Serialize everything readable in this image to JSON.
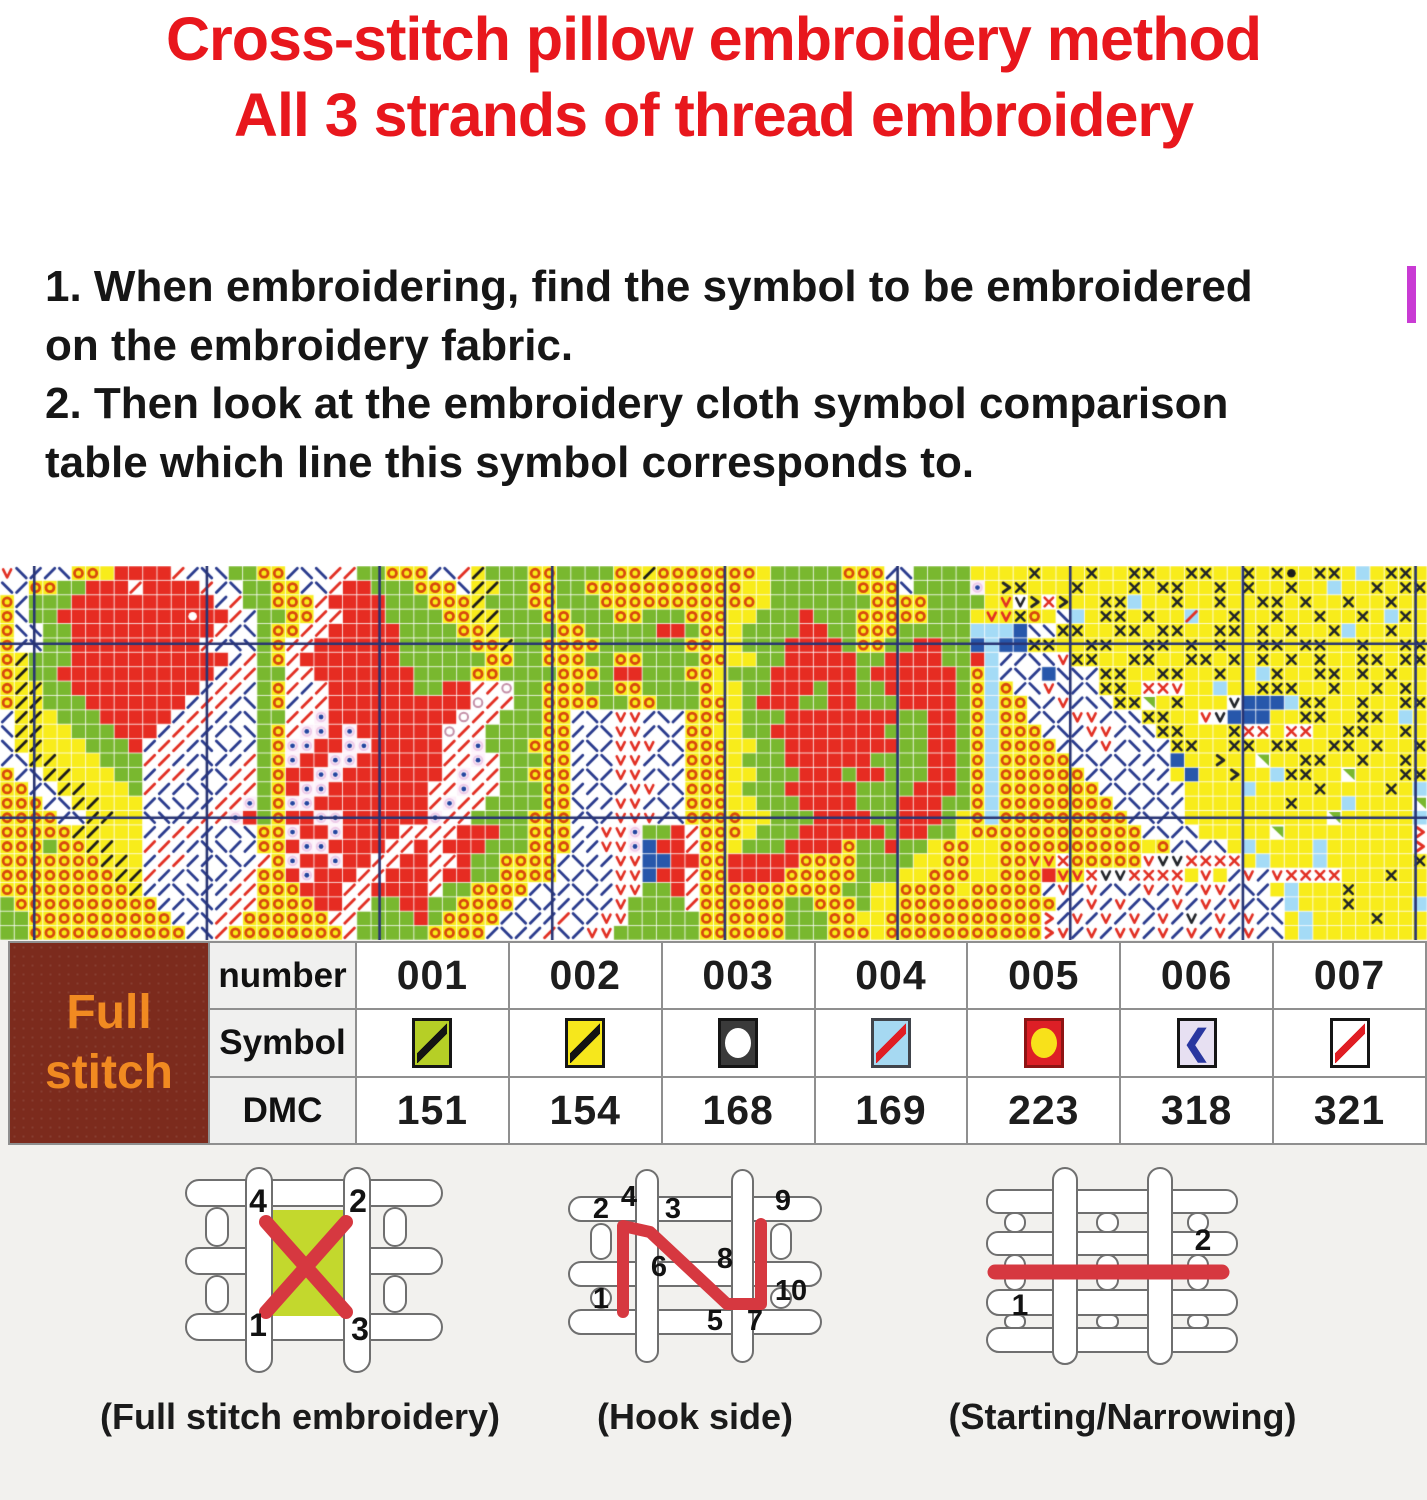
{
  "title": {
    "line1": "Cross-stitch pillow embroidery method",
    "line2": "All 3 strands of thread embroidery",
    "color": "#e8171d"
  },
  "instructions": {
    "lines": [
      "1. When embroidering, find the symbol to be embroidered",
      "on the embroidery fabric.",
      "2. Then look at the embroidery cloth symbol comparison",
      "table which line this symbol corresponds to."
    ]
  },
  "chart": {
    "cols": 100,
    "grid_line_color": "#ffffff",
    "heavy_line_color": "#283473",
    "heavy_vertical_cols": [
      2.4,
      14.5,
      26.6,
      38.7,
      50.8,
      62.9,
      75.0,
      87.1,
      99.2
    ],
    "heavy_horizontal_rows": [
      5.4,
      17.5
    ],
    "palette": {
      ".": {
        "bg": "#ffffff",
        "mark": "sf",
        "fg": "#2b3c8e"
      },
      "L": {
        "bg": "#ffffff",
        "mark": "sb",
        "fg": "#2b3c8e"
      },
      ",": {
        "bg": "#ffffff",
        "mark": "sf",
        "fg": "#e23024"
      },
      "/": {
        "bg": "#f8ec1b",
        "mark": "sf",
        "fg": "#1c1c1c"
      },
      "k": {
        "bg": "#f8ec1b",
        "mark": "sf",
        "fg": "#2b3c8e"
      },
      "o": {
        "bg": "#f8ec1b",
        "mark": "ring",
        "fg": "#d8480e"
      },
      "y": {
        "bg": "#f8ec1b",
        "mark": "none",
        "fg": ""
      },
      "g": {
        "bg": "#79b82f",
        "mark": "none",
        "fg": ""
      },
      "r": {
        "bg": "#e62c22",
        "mark": "none",
        "fg": ""
      },
      "x": {
        "bg": "#f8ec1b",
        "mark": "X",
        "fg": "#20242a"
      },
      "X": {
        "bg": "#ffffff",
        "mark": "X",
        "fg": "#e23024"
      },
      "c": {
        "bg": "#a4dbf6",
        "mark": "none",
        "fg": ""
      },
      "s": {
        "bg": "#a4dbf6",
        "mark": "sf",
        "fg": "#e23024"
      },
      "b": {
        "bg": "#2757ab",
        "mark": "none",
        "fg": ""
      },
      "d": {
        "bg": "#fdf1fa",
        "mark": "dot",
        "fg": "#2446a0"
      },
      "v": {
        "bg": "#ffffff",
        "mark": "V",
        "fg": "#e23024"
      },
      "u": {
        "bg": "#ffffff",
        "mark": "V",
        "fg": "#23262b"
      },
      "V": {
        "bg": "#f8ec1b",
        "mark": "V",
        "fg": "#e23024"
      },
      ">": {
        "bg": "#f8ec1b",
        "mark": "chev",
        "fg": "#23262b"
      },
      "}": {
        "bg": "#ffffff",
        "mark": "chev",
        "fg": "#e23024"
      },
      "N": {
        "bg": "#ffffff",
        "mark": "tri",
        "fg": "#79b82f"
      },
      "w": {
        "bg": "#ffffff",
        "mark": "none",
        "fg": ""
      },
      "Q": {
        "bg": "#e62c22",
        "mark": "disc",
        "fg": "#ffffff"
      },
      "q": {
        "bg": "#ffffff",
        "mark": "oring",
        "fg": "#c490a8"
      },
      "*": {
        "bg": "#f8ec1b",
        "mark": "disc",
        "fg": "#1c1c1c"
      }
    },
    "rows": [
      "vL..Looyrrrr,.LLggoo.LL,,ggooo.L,/gggooggggoo/oooooooygggggooo.Lggggyyyyxyyyxyyxxyyxxyyxyx*yxxycyxxy",
      "L.ooggrrr,rrrr,.Lggoo.L,rrgggoooL//ggooggoooooooooooyyggggggoooLggggdy>xyyyxyyyxyxxyyxyxyyxyycyyxyxx",
      "o.gggrrrrrrrrrr.,ggooo,rrrrgggooo/gggoogggoooooooooooygggggggooooggggyVu>X>yyxxcyyxyyxyyxxyxyyxyyxyyx",
      "oLggrrrrrrrrrQrr,.ggoo,,rrrggggoo//gggoogggoogggoooyygggrgggooooogggyVVxoyLcyxxyxyysyyxyyxyyxyyxycxy",
      "oLLggrrrrrrrrrr,.Lgoo,,rrrrrggggoo/ggggoogggggrrgooyggggrrggooogggggcccbLLxxyyxxyxxyyxxyxyxyyxcyyxyy",
      "o.Lggrrrrrrrrr,.LLgo,,rrrrrrgggggoo/ggooooggggggooyygggrrrrgooggrrggbcbbxxyyxxyyxxyxyxyyxxyxxyyxyyxx",
      "o/gggrrrrrrrrrrr.,go,rrrrrrrggggggooggoooggooggggooyyggrrrrrggrrrrggrc..LLvxxyyxxyyxxyxyxyxyxyyxxyxx",
      "o/ggrrrrrrrrrrr.,,gg,,rrrrrrrggggooggggooogrrgggooygggrrrrrrgrrrrrrgoc.L.bLL.xxyyxxyyxyycxyyxxyxyxyy",
      "o//ggrrrrrrrrr.,,.go,.,rrrrrrggrr,,qggoooggooggggoyyggrrrgrrggrrrrrgoco.LvL.LxxyXXvyycyyxxxyyxyyxyxy",
      "o//gggrrrrrrr.,,.Lgo.,,rrrrrrrrrrq,,ggooooggoogggooygrrrggrrgggrrrrgocooL.v.LLxxNyxyyyubbbcxxyyxyyxx",
      ".//ygggrrrrr.,,..Lgg,,drrrrrrrrrq,,gggoo.L.vv.L.oooygggrrrrrrrrggrrgocoo.L.vv.LLxxyyvubbbyyxxyyxxycy",
      "L//yygggrrr.,,..LLgo,ddrdrrrrrrq,,ggggoo..Lvv.L.ooyyggrrrrrrrrgggrrgocooo.L.vv.LLxxyyyxXXyXXyyxxyyxy",
      "L//yyygggr.,,.LL..goddrrddrrrrr,,dgggooo.L.vvv.Loooyyggrrrrrrrrggrrgocoooo.L.v.LL.xxyyxxyxxyyxxyxyyx",
      ".L//yyyggg,,..L..,godrrddrrrrrr,,d,gggoo..Lvv.L.oooygggrrrrrrggggrrgocooooo.L.L..Lbyy>yyNyyxxyyxyyxy",
      "o.L//yyygg.,,..L,,gorrddrrrrrrr,d,,ggooo.L.vv.L.oooyygggrrrgrrgggrrgocoooooo.L.L..ybyy>yycxxyyNyyyxx",
      "oo.L//yyyg,..LL.,,gorddrrrrrrr,,d,,gggoo..L.vv.Loooygggrrrrrggggrrrgocooooooo.L.L..yyyycyyyyxyyyyxyc",
      "ooo.L//yyy.LL..,,dgoddrrrrrrrr,d,,ggggooL..vv.L.oooyygggrrrrgggrrrggocoooooooo.L.L.yyyyyyyxyyycyyyyN",
      "oooo.L//yyLL..,,drgorrddrrrrrrd,,ggggooo.L.vvv.Looooyygggrrrrggrrrgyocooooooooo.L.Lyyyyyyyyy Nyyyyycy",
      "ooooo//yyy..,,..LLoodrrdrrrr,,,,rrrggooo..vvdggr,oooygggrrrrrrgrrggyoooooooooooo.L.LyyyyyNyyyyyyyyy}",
      "ooogoo//yy,,..LL..oorddrrrr,,r,rrrgggooo..vvdbrr,ooygggrrrroggrggyooyyoooooooooo o.L.Lycyyyycyyyyyy}y",
      "ooooooo//y.,,..LL.,odrrdrr,,rr,,rggoooo.L..vvbbrroorrrrrooooggggyyooyyooVVXooooovuuXXXXycyyycyyyyyyx",
      "oooooooo//,..LL..,oordrrr,,rrr,rrggooooL.L.vvbrr,oorrrrooooogggyyoooyyooorVVXuuXXXXyvy.v.vXXXXyyyxyy",
      "ooooooooo/..LL..,,ooorrr,,rrrr,ggoooo.L.L..vvggr,ooooooooooggyyooooyooooo.v.v.L.v.v.vv.L.ycyyyxyyyy",
      "goooooooooo..LL.,,oooorr,,ggrrggoooo.L...L.vgggg,ooooooggooogyyooooooooooo..v.v.L.v.v.v.L.cyyyxyyyyc",
      "ggoooooooooo..L,,oooooo,,ggggrgoooo.L..,L.vvgggggoooooogggooyyooooooooooo}.v.v.v.v.u.v.v.Lycyyyyxyyy",
      "ggooooooooooo.L,oooooooo,gggggoooo.L..,L.vvggggggoooooogggoooyooooooooooo}v.v.vv.v.v.v.v.Lycyyyyyyyyy"
    ]
  },
  "table": {
    "section_label_line1": "Full",
    "section_label_line2": "stitch",
    "row_labels": {
      "number": "number",
      "symbol": "Symbol",
      "dmc": "DMC"
    },
    "cols": [
      {
        "number": "001",
        "dmc": "151",
        "symbol": {
          "bg": "#b6cf26",
          "border": "#151515",
          "mark": "slash",
          "color": "#131313"
        }
      },
      {
        "number": "002",
        "dmc": "154",
        "symbol": {
          "bg": "#f6e71c",
          "border": "#151515",
          "mark": "slash",
          "color": "#131313"
        }
      },
      {
        "number": "003",
        "dmc": "168",
        "symbol": {
          "bg": "#3a3a3a",
          "border": "#151515",
          "mark": "circle",
          "color": "#ffffff"
        }
      },
      {
        "number": "004",
        "dmc": "169",
        "symbol": {
          "bg": "#a6d9f2",
          "border": "#40444b",
          "mark": "slash",
          "color": "#e01e24"
        }
      },
      {
        "number": "005",
        "dmc": "223",
        "symbol": {
          "bg": "#dd1f26",
          "border": "#8f1414",
          "mark": "circle",
          "color": "#f8e11a"
        }
      },
      {
        "number": "006",
        "dmc": "318",
        "symbol": {
          "bg": "#e7e0f2",
          "border": "#151515",
          "mark": "chevron",
          "color": "#2937a0"
        }
      },
      {
        "number": "007",
        "dmc": "321",
        "symbol": {
          "bg": "#ffffff",
          "border": "#151515",
          "mark": "slash",
          "color": "#e01e24"
        }
      }
    ]
  },
  "diagrams": {
    "full_stitch": {
      "caption": "(Full stitch embroidery)",
      "numbers": [
        "4",
        "2",
        "1",
        "3"
      ]
    },
    "hook_side": {
      "caption": "(Hook side)",
      "numbers": [
        "2",
        "4",
        "3",
        "9",
        "6",
        "8",
        "1",
        "5",
        "7",
        "10"
      ]
    },
    "starting": {
      "caption": "(Starting/Narrowing)",
      "numbers": [
        "1",
        "2"
      ]
    }
  }
}
